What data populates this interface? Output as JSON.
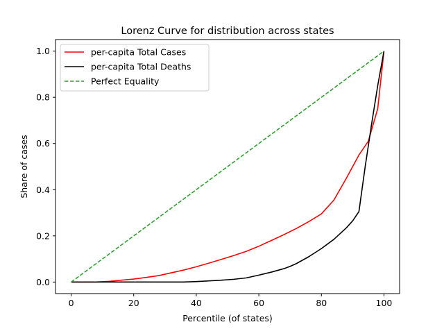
{
  "chart_data": {
    "type": "line",
    "title": "Lorenz Curve for distribution across states",
    "xlabel": "Percentile (of states)",
    "ylabel": "Share of cases",
    "xlim": [
      -5,
      105
    ],
    "ylim": [
      -0.05,
      1.05
    ],
    "xticks": [
      0,
      20,
      40,
      60,
      80,
      100
    ],
    "xtick_labels": [
      "0",
      "20",
      "40",
      "60",
      "80",
      "100"
    ],
    "yticks": [
      0.0,
      0.2,
      0.4,
      0.6,
      0.8,
      1.0
    ],
    "ytick_labels": [
      "0.0",
      "0.2",
      "0.4",
      "0.6",
      "0.8",
      "1.0"
    ],
    "grid": false,
    "legend_position": "top-left",
    "series": [
      {
        "name": "per-capita Total Cases",
        "color": "#ff0000",
        "style": "solid",
        "x": [
          0,
          8,
          12,
          16,
          20,
          24,
          28,
          32,
          36,
          40,
          44,
          48,
          52,
          56,
          60,
          64,
          68,
          72,
          76,
          80,
          81,
          84,
          88,
          92,
          95,
          98,
          100
        ],
        "y": [
          0.0,
          0.0,
          0.003,
          0.008,
          0.013,
          0.02,
          0.028,
          0.04,
          0.052,
          0.066,
          0.082,
          0.098,
          0.115,
          0.133,
          0.155,
          0.18,
          0.205,
          0.232,
          0.262,
          0.295,
          0.31,
          0.355,
          0.45,
          0.55,
          0.61,
          0.75,
          1.0
        ]
      },
      {
        "name": "per-capita Total Deaths",
        "color": "#000000",
        "style": "solid",
        "x": [
          0,
          20,
          36,
          40,
          44,
          48,
          52,
          56,
          60,
          64,
          68,
          70,
          72,
          76,
          80,
          84,
          88,
          90,
          92,
          94,
          96,
          98,
          100
        ],
        "y": [
          0.0,
          0.0,
          0.0,
          0.002,
          0.005,
          0.008,
          0.012,
          0.018,
          0.03,
          0.043,
          0.058,
          0.068,
          0.08,
          0.11,
          0.145,
          0.185,
          0.235,
          0.265,
          0.305,
          0.5,
          0.68,
          0.85,
          1.0
        ]
      },
      {
        "name": "Perfect Equality",
        "color": "#2ca02c",
        "style": "dashed",
        "x": [
          0,
          100
        ],
        "y": [
          0.0,
          1.0
        ]
      }
    ]
  }
}
